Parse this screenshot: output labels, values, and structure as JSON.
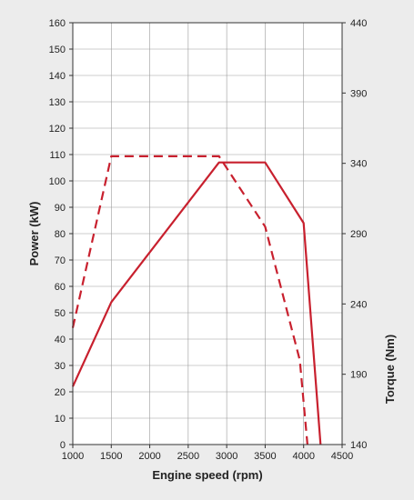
{
  "chart_data": {
    "type": "line",
    "x_axis": {
      "label": "Engine speed (rpm)",
      "range": [
        1000,
        4500
      ],
      "ticks": [
        "1000",
        "1500",
        "2000",
        "2500",
        "3000",
        "3500",
        "4000",
        "4500"
      ]
    },
    "y_left": {
      "label": "Power (kW)",
      "range": [
        0,
        160
      ],
      "ticks": [
        "0",
        "10",
        "20",
        "30",
        "40",
        "50",
        "60",
        "70",
        "80",
        "90",
        "100",
        "110",
        "120",
        "130",
        "140",
        "150",
        "160"
      ]
    },
    "y_right": {
      "label": "Torque (Nm)",
      "range": [
        140,
        440
      ],
      "ticks": [
        "140",
        "190",
        "240",
        "290",
        "340",
        "390",
        "440"
      ]
    },
    "grid": true,
    "series": [
      {
        "axis": "left",
        "style": "solid",
        "color": "#c8202e",
        "x": [
          1000,
          1500,
          2900,
          3500,
          4000,
          4220
        ],
        "y": [
          22,
          54,
          107,
          107,
          84,
          0
        ]
      },
      {
        "axis": "right",
        "style": "dashed",
        "color": "#c8202e",
        "x": [
          1000,
          1500,
          2000,
          2900,
          3500,
          3950,
          4050
        ],
        "y": [
          223,
          345,
          345,
          345,
          295,
          200,
          140
        ]
      }
    ]
  }
}
